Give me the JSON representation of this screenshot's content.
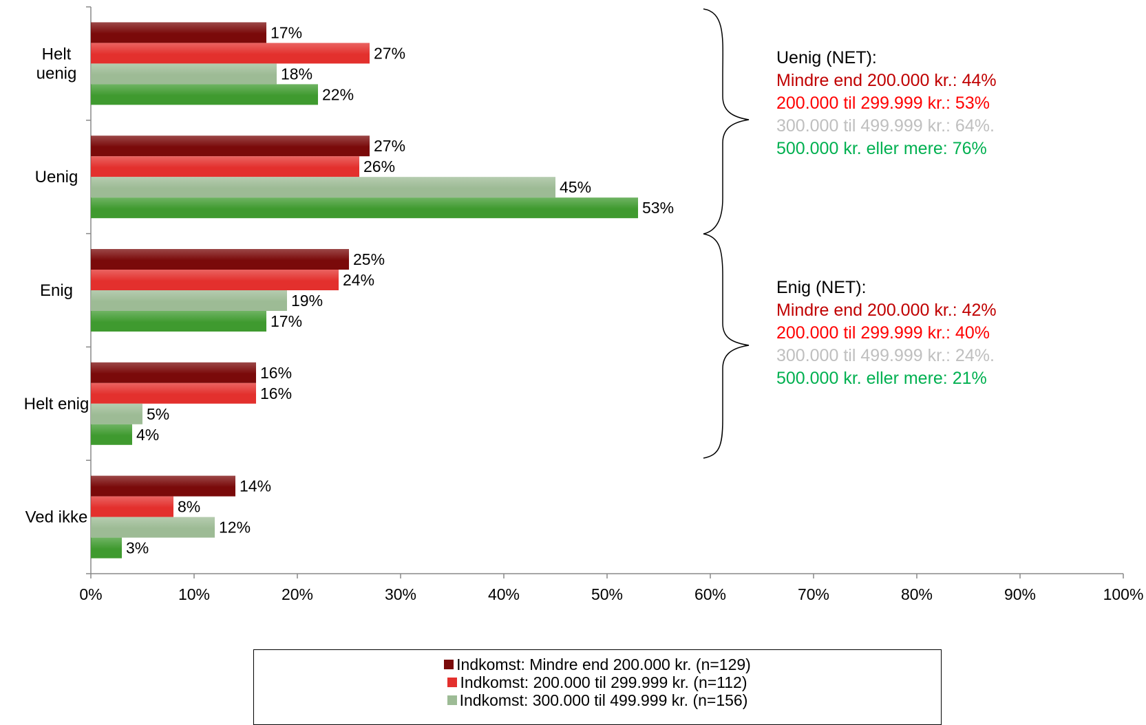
{
  "chart_data": {
    "type": "bar",
    "orientation": "horizontal",
    "categories": [
      "Helt uenig",
      "Uenig",
      "Enig",
      "Helt enig",
      "Ved ikke"
    ],
    "category_lines": [
      [
        "Helt",
        "uenig"
      ],
      [
        "Uenig"
      ],
      [
        "Enig"
      ],
      [
        "Helt enig"
      ],
      [
        "Ved ikke"
      ]
    ],
    "series": [
      {
        "name": "Indkomst: Mindre end 200.000 kr. (n=129)",
        "color": "#7a0a0a",
        "values": [
          17,
          27,
          25,
          16,
          14
        ]
      },
      {
        "name": "Indkomst: 200.000 til 299.999 kr. (n=112)",
        "color": "#e3302d",
        "values": [
          27,
          26,
          24,
          16,
          8
        ]
      },
      {
        "name": "Indkomst: 300.000 til 499.999 kr. (n=156)",
        "color": "#9dbb95",
        "values": [
          18,
          45,
          19,
          5,
          12
        ]
      },
      {
        "name": "",
        "color": "#3f9a2f",
        "values": [
          22,
          53,
          17,
          4,
          3
        ]
      }
    ],
    "xlim": [
      0,
      100
    ],
    "x_ticks": [
      "0%",
      "10%",
      "20%",
      "30%",
      "40%",
      "50%",
      "60%",
      "70%",
      "80%",
      "90%",
      "100%"
    ],
    "value_suffix": "%",
    "legend": "bottom",
    "grid": false
  },
  "annotations": {
    "uenig": {
      "title": "Uenig (NET):",
      "lines": [
        {
          "text": "Mindre end 200.000 kr.: 44%",
          "color": "#c00000"
        },
        {
          "text": "200.000 til 299.999 kr.: 53%",
          "color": "#ff0000"
        },
        {
          "text": "300.000 til 499.999 kr.: 64%.",
          "color": "#bfbfbf"
        },
        {
          "text": "500.000 kr. eller mere: 76%",
          "color": "#00b050"
        }
      ]
    },
    "enig": {
      "title": "Enig (NET):",
      "lines": [
        {
          "text": "Mindre end 200.000 kr.: 42%",
          "color": "#c00000"
        },
        {
          "text": "200.000 til 299.999 kr.: 40%",
          "color": "#ff0000"
        },
        {
          "text": "300.000 til 499.999 kr.: 24%.",
          "color": "#bfbfbf"
        },
        {
          "text": "500.000 kr. eller mere: 21%",
          "color": "#00b050"
        }
      ]
    }
  }
}
